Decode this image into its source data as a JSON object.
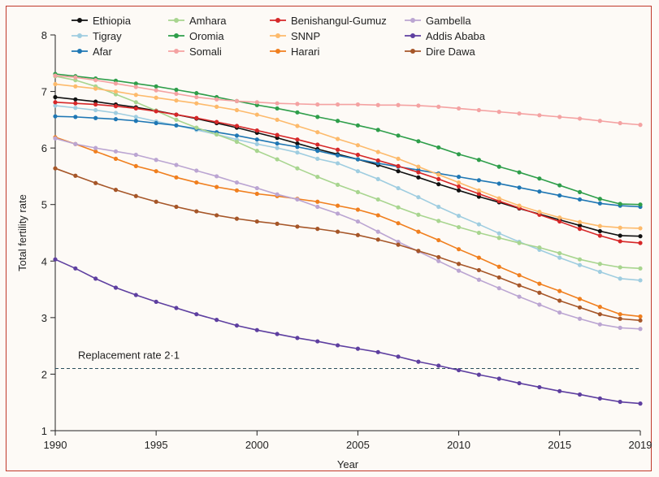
{
  "chart_data": {
    "type": "line",
    "title": "",
    "xlabel": "Year",
    "ylabel": "Total fertility rate",
    "xlim": [
      1990,
      2019
    ],
    "ylim": [
      1,
      8
    ],
    "x_ticks": [
      1990,
      1995,
      2000,
      2005,
      2010,
      2015,
      2019
    ],
    "y_ticks": [
      1,
      2,
      3,
      4,
      5,
      6,
      7,
      8
    ],
    "grid": false,
    "legend_position": "top",
    "x": [
      1990,
      1991,
      1992,
      1993,
      1994,
      1995,
      1996,
      1997,
      1998,
      1999,
      2000,
      2001,
      2002,
      2003,
      2004,
      2005,
      2006,
      2007,
      2008,
      2009,
      2010,
      2011,
      2012,
      2013,
      2014,
      2015,
      2016,
      2017,
      2018,
      2019
    ],
    "reference_line": {
      "value": 2.1,
      "label": "Replacement rate 2·1"
    },
    "series": [
      {
        "name": "Ethiopia",
        "color": "#111111",
        "values": [
          6.9,
          6.86,
          6.82,
          6.77,
          6.72,
          6.66,
          6.59,
          6.52,
          6.44,
          6.36,
          6.27,
          6.18,
          6.08,
          5.98,
          5.89,
          5.8,
          5.7,
          5.59,
          5.48,
          5.36,
          5.25,
          5.14,
          5.04,
          4.93,
          4.83,
          4.73,
          4.63,
          4.53,
          4.45,
          4.44
        ]
      },
      {
        "name": "Tigray",
        "color": "#9fcde0",
        "values": [
          6.75,
          6.71,
          6.67,
          6.62,
          6.55,
          6.47,
          6.4,
          6.32,
          6.24,
          6.15,
          6.07,
          6.0,
          5.92,
          5.81,
          5.73,
          5.59,
          5.45,
          5.29,
          5.13,
          4.96,
          4.8,
          4.65,
          4.49,
          4.34,
          4.2,
          4.06,
          3.93,
          3.81,
          3.69,
          3.66
        ]
      },
      {
        "name": "Afar",
        "color": "#1f77b4",
        "values": [
          6.56,
          6.55,
          6.53,
          6.51,
          6.48,
          6.44,
          6.4,
          6.34,
          6.28,
          6.22,
          6.15,
          6.08,
          6.02,
          5.95,
          5.87,
          5.8,
          5.73,
          5.67,
          5.61,
          5.55,
          5.49,
          5.43,
          5.37,
          5.3,
          5.23,
          5.16,
          5.09,
          5.02,
          4.98,
          4.96
        ]
      },
      {
        "name": "Amhara",
        "color": "#a8d58f",
        "values": [
          7.27,
          7.2,
          7.09,
          6.95,
          6.81,
          6.66,
          6.5,
          6.36,
          6.24,
          6.11,
          5.95,
          5.8,
          5.64,
          5.49,
          5.35,
          5.22,
          5.09,
          4.95,
          4.82,
          4.71,
          4.6,
          4.5,
          4.41,
          4.32,
          4.24,
          4.14,
          4.03,
          3.95,
          3.89,
          3.87
        ]
      },
      {
        "name": "Oromia",
        "color": "#2e9e4a",
        "values": [
          7.31,
          7.27,
          7.23,
          7.19,
          7.14,
          7.09,
          7.03,
          6.97,
          6.9,
          6.83,
          6.76,
          6.7,
          6.63,
          6.55,
          6.48,
          6.4,
          6.32,
          6.22,
          6.12,
          6.01,
          5.89,
          5.79,
          5.67,
          5.57,
          5.46,
          5.34,
          5.22,
          5.1,
          5.01,
          5.0
        ]
      },
      {
        "name": "Somali",
        "color": "#f4a2a2",
        "values": [
          7.28,
          7.25,
          7.2,
          7.14,
          7.08,
          7.02,
          6.96,
          6.9,
          6.86,
          6.83,
          6.81,
          6.79,
          6.78,
          6.77,
          6.77,
          6.77,
          6.76,
          6.76,
          6.75,
          6.73,
          6.7,
          6.67,
          6.64,
          6.61,
          6.58,
          6.55,
          6.52,
          6.48,
          6.44,
          6.41
        ]
      },
      {
        "name": "Benishangul-Gumuz",
        "color": "#d62728",
        "values": [
          6.81,
          6.79,
          6.77,
          6.74,
          6.7,
          6.65,
          6.59,
          6.53,
          6.46,
          6.39,
          6.31,
          6.23,
          6.15,
          6.06,
          5.97,
          5.88,
          5.78,
          5.68,
          5.57,
          5.45,
          5.32,
          5.19,
          5.06,
          4.94,
          4.82,
          4.7,
          4.57,
          4.45,
          4.35,
          4.32
        ]
      },
      {
        "name": "SNNP",
        "color": "#fdba6b",
        "values": [
          7.13,
          7.09,
          7.05,
          7.0,
          6.94,
          6.89,
          6.84,
          6.79,
          6.73,
          6.67,
          6.59,
          6.5,
          6.39,
          6.28,
          6.16,
          6.05,
          5.93,
          5.81,
          5.67,
          5.53,
          5.39,
          5.25,
          5.11,
          4.98,
          4.87,
          4.77,
          4.69,
          4.62,
          4.59,
          4.58
        ]
      },
      {
        "name": "Harari",
        "color": "#f07f1e",
        "values": [
          6.19,
          6.07,
          5.94,
          5.81,
          5.68,
          5.59,
          5.48,
          5.39,
          5.31,
          5.25,
          5.19,
          5.15,
          5.1,
          5.05,
          4.98,
          4.91,
          4.81,
          4.67,
          4.52,
          4.37,
          4.21,
          4.06,
          3.9,
          3.75,
          3.6,
          3.47,
          3.33,
          3.19,
          3.06,
          3.02
        ]
      },
      {
        "name": "Gambella",
        "color": "#bba5d2",
        "values": [
          6.17,
          6.07,
          6.0,
          5.94,
          5.88,
          5.79,
          5.7,
          5.6,
          5.5,
          5.39,
          5.29,
          5.18,
          5.09,
          4.96,
          4.84,
          4.7,
          4.52,
          4.34,
          4.17,
          4.0,
          3.83,
          3.67,
          3.52,
          3.37,
          3.23,
          3.09,
          2.98,
          2.88,
          2.82,
          2.8
        ]
      },
      {
        "name": "Addis Ababa",
        "color": "#5e3fa0",
        "values": [
          4.03,
          3.87,
          3.69,
          3.53,
          3.4,
          3.28,
          3.17,
          3.06,
          2.96,
          2.86,
          2.78,
          2.71,
          2.64,
          2.58,
          2.51,
          2.45,
          2.39,
          2.31,
          2.22,
          2.15,
          2.07,
          1.99,
          1.92,
          1.84,
          1.77,
          1.7,
          1.64,
          1.57,
          1.51,
          1.48
        ]
      },
      {
        "name": "Dire Dawa",
        "color": "#a65628",
        "values": [
          5.64,
          5.51,
          5.38,
          5.26,
          5.15,
          5.05,
          4.96,
          4.88,
          4.81,
          4.75,
          4.7,
          4.66,
          4.61,
          4.57,
          4.52,
          4.46,
          4.38,
          4.29,
          4.18,
          4.07,
          3.95,
          3.84,
          3.71,
          3.57,
          3.44,
          3.3,
          3.18,
          3.06,
          2.98,
          2.95
        ]
      }
    ]
  }
}
